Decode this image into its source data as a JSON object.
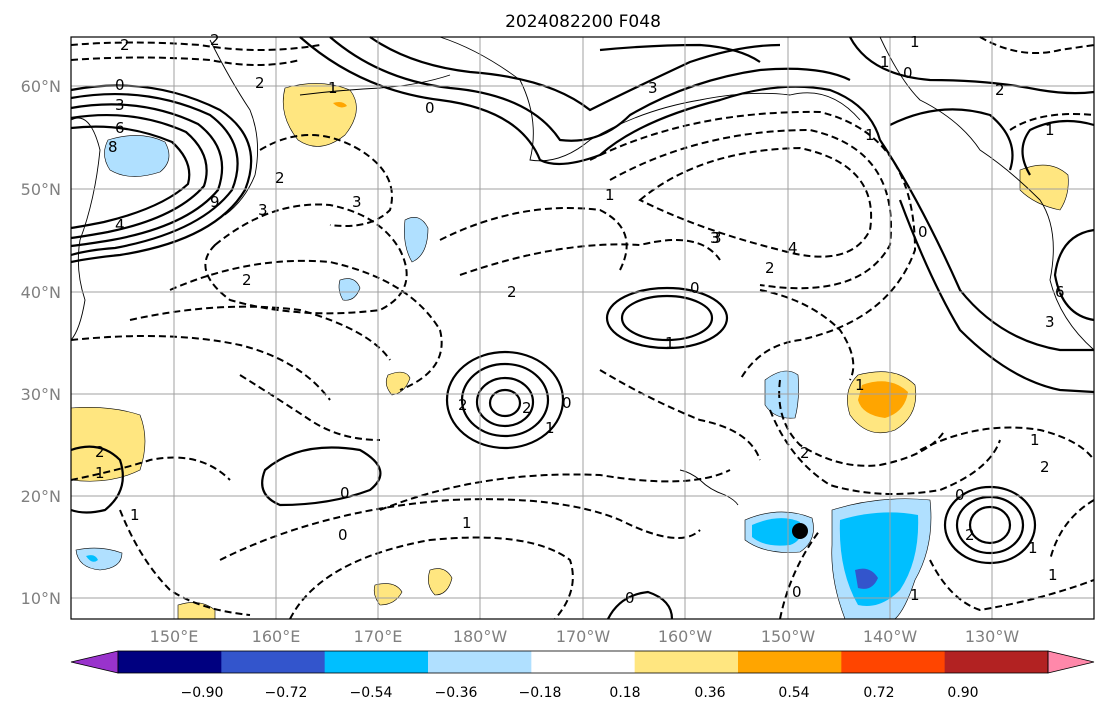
{
  "title": "2024082200 F048",
  "x_labels": [
    "150°E",
    "160°E",
    "170°E",
    "180°W",
    "170°W",
    "160°W",
    "150°W",
    "140°W",
    "130°W"
  ],
  "y_labels": [
    "60°N",
    "50°N",
    "40°N",
    "30°N",
    "20°N",
    "10°N"
  ],
  "colorbar": {
    "colors": [
      "#9933cc",
      "#000080",
      "#3355cc",
      "#00bfff",
      "#b0e0ff",
      "#ffffff",
      "#ffe680",
      "#ffa500",
      "#ff4500",
      "#b22222",
      "#ff88aa"
    ],
    "tick_labels": [
      "−0.90",
      "−0.72",
      "−0.54",
      "−0.36",
      "−0.18",
      "0.18",
      "0.36",
      "0.54",
      "0.72",
      "0.90"
    ]
  },
  "contour_labels": [
    "2",
    "2",
    "0",
    "3",
    "6",
    "8",
    "4",
    "9",
    "2",
    "1",
    "3",
    "2",
    "2",
    "3",
    "0",
    "1",
    "3",
    "2",
    "3",
    "4",
    "2",
    "1",
    "0",
    "1",
    "2",
    "0",
    "2",
    "1",
    "0",
    "2",
    "3",
    "6",
    "3",
    "0",
    "0",
    "1",
    "1",
    "0",
    "1",
    "2",
    "1",
    "1",
    "0",
    "1",
    "2",
    "0",
    "0",
    "2",
    "1",
    "1",
    "2",
    "1",
    "1",
    "1"
  ],
  "marker": "storm-center-dot"
}
